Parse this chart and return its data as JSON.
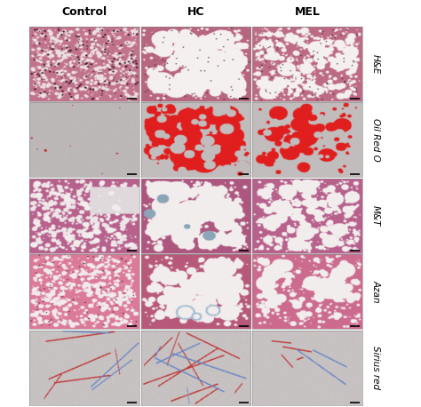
{
  "col_labels": [
    "Control",
    "HC",
    "MEL"
  ],
  "row_labels": [
    "H&E",
    "Oil Red O",
    "M&T",
    "Azan",
    "Sirius red"
  ],
  "col_label_fontsize": 9,
  "row_label_fontsize": 7.5,
  "background_color": "#ffffff",
  "grid_rows": 5,
  "grid_cols": 3
}
